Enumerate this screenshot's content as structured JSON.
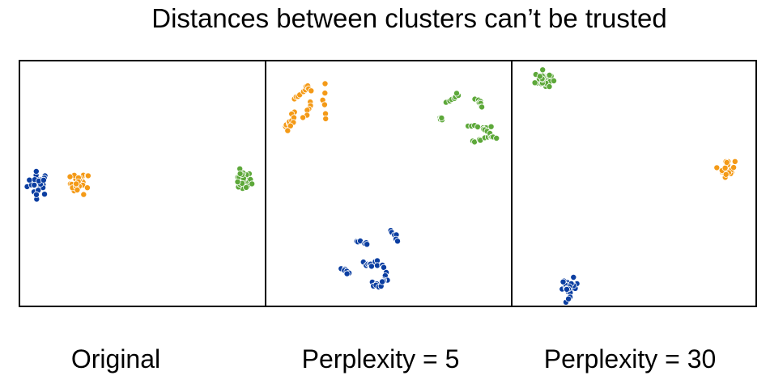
{
  "title": "Distances between clusters can’t be trusted",
  "colors": {
    "blue": "#0b3ea1",
    "orange": "#f49a17",
    "green": "#5da83a",
    "frame": "#000000"
  },
  "chart_data": [
    {
      "type": "scatter",
      "subtitle": "Original",
      "xlim": [
        0,
        100
      ],
      "ylim": [
        0,
        100
      ],
      "clusters": [
        {
          "color": "blue",
          "center": [
            8,
            50
          ],
          "spread": 2.2,
          "count": 28
        },
        {
          "color": "orange",
          "center": [
            25,
            50
          ],
          "spread": 2.0,
          "count": 26
        },
        {
          "color": "green",
          "center": [
            91,
            51
          ],
          "spread": 1.8,
          "count": 26
        }
      ]
    },
    {
      "type": "scatter",
      "subtitle": "Perplexity = 5",
      "xlim": [
        0,
        100
      ],
      "ylim": [
        0,
        100
      ],
      "clusters": [
        {
          "color": "orange",
          "spread": 0.9,
          "count": 36,
          "segments": [
            [
              [
                12,
                84
              ],
              [
                16,
                88
              ]
            ],
            [
              [
                8,
                73
              ],
              [
                11,
                75
              ]
            ],
            [
              [
                17,
                89
              ],
              [
                19,
                88
              ]
            ],
            [
              [
                19,
                82
              ],
              [
                16,
                77
              ]
            ],
            [
              [
                24,
                90
              ],
              [
                25,
                76
              ]
            ],
            [
              [
                12,
                79
              ],
              [
                10,
                72
              ]
            ]
          ]
        },
        {
          "color": "green",
          "spread": 0.9,
          "count": 40,
          "segments": [
            [
              [
                74,
                83
              ],
              [
                79,
                86
              ]
            ],
            [
              [
                86,
                84
              ],
              [
                88,
                81
              ]
            ],
            [
              [
                71,
                77
              ],
              [
                72,
                76
              ]
            ],
            [
              [
                82,
                73
              ],
              [
                92,
                73
              ]
            ],
            [
              [
                84,
                67
              ],
              [
                92,
                69
              ]
            ],
            [
              [
                89,
                72
              ],
              [
                94,
                68
              ]
            ]
          ]
        },
        {
          "color": "blue",
          "spread": 0.9,
          "count": 40,
          "segments": [
            [
              [
                38,
                27
              ],
              [
                42,
                26
              ]
            ],
            [
              [
                51,
                31
              ],
              [
                54,
                27
              ]
            ],
            [
              [
                31,
                16
              ],
              [
                35,
                13
              ]
            ],
            [
              [
                40,
                18
              ],
              [
                44,
                17
              ]
            ],
            [
              [
                45,
                19
              ],
              [
                48,
                16
              ]
            ],
            [
              [
                44,
                10
              ],
              [
                47,
                8
              ]
            ],
            [
              [
                49,
                13
              ],
              [
                48,
                10
              ]
            ]
          ]
        }
      ]
    },
    {
      "type": "scatter",
      "subtitle": "Perplexity = 30",
      "xlim": [
        0,
        100
      ],
      "ylim": [
        0,
        100
      ],
      "clusters": [
        {
          "color": "green",
          "center": [
            13,
            92
          ],
          "spread": 1.6,
          "count": 30
        },
        {
          "color": "orange",
          "center": [
            88,
            56
          ],
          "spread": 1.5,
          "count": 26
        },
        {
          "color": "blue",
          "center": [
            24,
            8
          ],
          "spread": 1.6,
          "count": 30
        }
      ]
    }
  ]
}
